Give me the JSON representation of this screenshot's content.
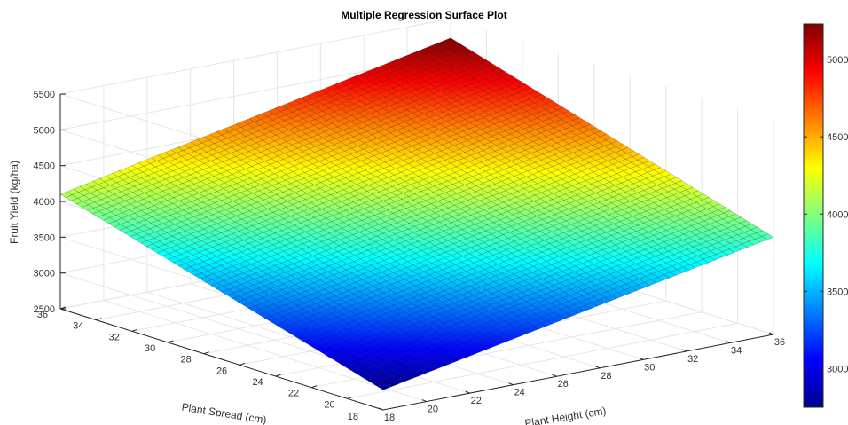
{
  "chart_data": {
    "type": "surface",
    "title": "Multiple Regression Surface Plot",
    "xlabel": "Plant Height (cm)",
    "ylabel": "Plant Spread (cm)",
    "zlabel": "Fruit Yield (kg/ha)",
    "xlim": [
      18,
      36
    ],
    "ylim": [
      18,
      36
    ],
    "zlim": [
      2500,
      5500
    ],
    "x_ticks": [
      18,
      20,
      22,
      24,
      26,
      28,
      30,
      32,
      34,
      36
    ],
    "y_ticks": [
      20,
      22,
      24,
      26,
      28,
      30,
      32,
      34,
      36
    ],
    "z_ticks": [
      2500,
      3000,
      3500,
      4000,
      4500,
      5000,
      5500
    ],
    "surface_corners": [
      {
        "x": 18,
        "y": 18,
        "z": 2780
      },
      {
        "x": 36,
        "y": 18,
        "z": 3860
      },
      {
        "x": 18,
        "y": 36,
        "z": 4100
      },
      {
        "x": 36,
        "y": 36,
        "z": 5230
      }
    ],
    "colormap": "jet",
    "colorbar": {
      "range": [
        2750,
        5230
      ],
      "ticks": [
        3000,
        3500,
        4000,
        4500,
        5000
      ]
    },
    "grid": true
  }
}
